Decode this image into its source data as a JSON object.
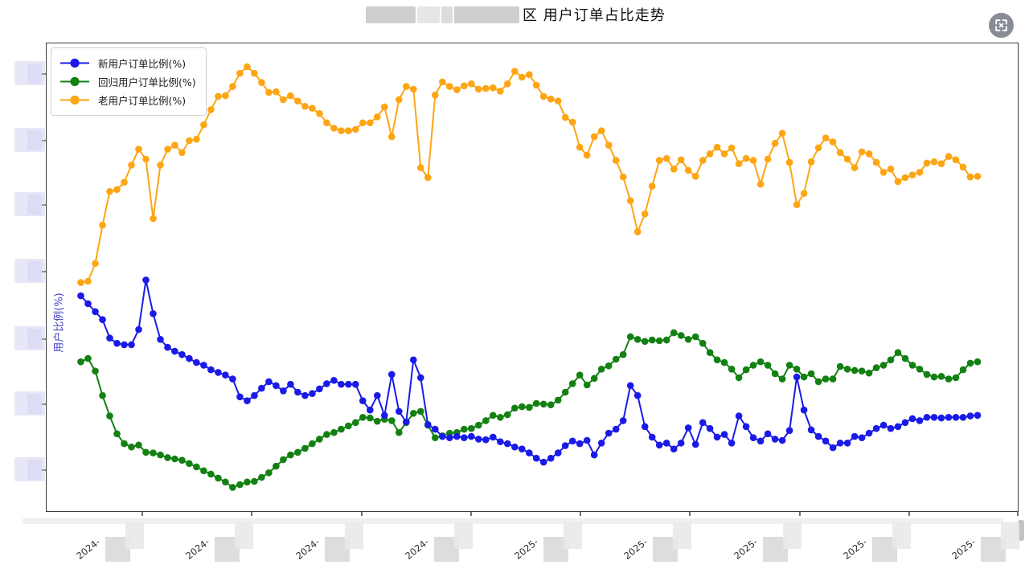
{
  "title": {
    "prefix_redacted": true,
    "visible_text": "区 用户订单占比走势"
  },
  "controls": {
    "fullscreen_button": {
      "icon": "fullscreen-expand-icon"
    }
  },
  "y_axis": {
    "label": "用户比例(%)",
    "label_color": "#4343c8",
    "tick_labels_redacted": true
  },
  "x_axis": {
    "tick_label_prefixes": [
      "2024-",
      "2024-",
      "2024-",
      "2024-",
      "2025-",
      "2025-",
      "2025-",
      "2025-",
      "2025-"
    ],
    "month_suffix_redacted": true
  },
  "chart_data": {
    "type": "line",
    "title": "区 用户订单占比走势",
    "xlabel": "",
    "ylabel": "用户比例(%)",
    "legend_position": "upper-left",
    "grid": false,
    "y_ticks_estimated": [
      10,
      20,
      30,
      40,
      50,
      60,
      70
    ],
    "y_tick_labels_redacted": true,
    "x_tick_labels_visible": [
      "2024-",
      "2024-",
      "2024-",
      "2024-",
      "2025-",
      "2025-",
      "2025-",
      "2025-",
      "2025-"
    ],
    "note": "daily percentage series; axis tick numbers blurred in source, values estimated",
    "series": [
      {
        "name": "新用户订单比例(%)",
        "color": "#1a1ae8",
        "values": [
          36.4,
          35.2,
          34.0,
          32.8,
          30.0,
          29.2,
          29.0,
          29.0,
          31.3,
          38.8,
          33.7,
          29.8,
          28.6,
          28.0,
          27.5,
          26.9,
          26.3,
          25.9,
          25.2,
          24.8,
          24.4,
          23.8,
          21.1,
          20.5,
          21.3,
          22.4,
          23.4,
          22.8,
          22.0,
          23.0,
          21.8,
          21.3,
          21.6,
          22.3,
          23.1,
          23.6,
          23.0,
          23.0,
          23.0,
          20.5,
          19.1,
          21.3,
          18.3,
          24.5,
          18.9,
          17.3,
          26.7,
          24.0,
          16.9,
          16.2,
          15.1,
          14.9,
          15.1,
          14.9,
          15.1,
          14.7,
          14.6,
          15.0,
          14.3,
          14.0,
          13.5,
          13.2,
          12.6,
          11.8,
          11.2,
          11.8,
          12.6,
          13.7,
          14.4,
          14.0,
          14.5,
          12.3,
          14.1,
          15.6,
          16.2,
          17.5,
          22.8,
          21.3,
          16.6,
          15.0,
          13.8,
          14.1,
          13.2,
          14.1,
          16.4,
          13.9,
          17.2,
          16.3,
          15.0,
          15.4,
          14.1,
          18.2,
          16.6,
          14.9,
          14.4,
          15.5,
          14.7,
          14.5,
          16.0,
          24.1,
          19.1,
          16.1,
          15.1,
          14.4,
          13.4,
          14.1,
          14.1,
          15.1,
          14.9,
          15.6,
          16.3,
          16.8,
          16.3,
          16.6,
          17.2,
          17.8,
          17.5,
          18.0,
          18.0,
          17.9,
          18.0,
          18.0,
          18.0,
          18.2,
          18.3
        ]
      },
      {
        "name": "回归用户订单比例(%)",
        "color": "#128112",
        "values": [
          26.4,
          26.9,
          25.0,
          21.3,
          18.2,
          15.5,
          14.0,
          13.5,
          13.8,
          12.7,
          12.6,
          12.3,
          11.9,
          11.7,
          11.5,
          11.0,
          10.5,
          9.9,
          9.4,
          8.8,
          8.2,
          7.4,
          7.8,
          8.2,
          8.3,
          8.9,
          9.6,
          10.6,
          11.6,
          12.3,
          12.7,
          13.3,
          14.0,
          14.7,
          15.4,
          15.7,
          16.2,
          16.7,
          17.2,
          18.0,
          17.9,
          17.4,
          17.7,
          17.5,
          15.7,
          17.2,
          18.6,
          18.9,
          16.8,
          14.9,
          15.2,
          15.6,
          15.7,
          16.2,
          16.3,
          16.8,
          17.5,
          18.3,
          18.0,
          18.4,
          19.4,
          19.6,
          19.5,
          20.1,
          20.0,
          19.9,
          20.6,
          21.8,
          23.1,
          24.4,
          22.9,
          23.9,
          25.3,
          25.8,
          26.8,
          27.5,
          30.2,
          29.8,
          29.5,
          29.7,
          29.6,
          29.7,
          30.8,
          30.4,
          29.8,
          30.2,
          29.2,
          27.8,
          26.7,
          26.3,
          25.3,
          24.0,
          25.2,
          25.9,
          26.4,
          25.9,
          24.6,
          23.8,
          25.9,
          25.3,
          24.1,
          24.6,
          23.4,
          23.8,
          23.8,
          25.7,
          25.3,
          25.1,
          25.0,
          24.7,
          25.5,
          25.9,
          26.7,
          27.8,
          26.9,
          25.9,
          25.3,
          24.5,
          24.1,
          24.2,
          23.8,
          24.0,
          25.2,
          26.2,
          26.4
        ]
      },
      {
        "name": "老用户订单比例(%)",
        "color": "#fda513",
        "values": [
          38.4,
          38.6,
          41.3,
          47.1,
          52.2,
          52.5,
          53.6,
          56.2,
          58.6,
          57.1,
          48.1,
          56.2,
          58.6,
          59.2,
          58.1,
          59.9,
          60.1,
          62.3,
          64.6,
          66.6,
          66.7,
          68.1,
          70.1,
          71.1,
          70.1,
          68.7,
          67.2,
          67.3,
          66.1,
          66.7,
          65.9,
          65.1,
          64.8,
          64.0,
          62.6,
          61.8,
          61.4,
          61.4,
          61.6,
          62.6,
          62.6,
          63.5,
          65.0,
          60.5,
          66.1,
          68.1,
          67.7,
          55.8,
          54.3,
          66.8,
          68.8,
          68.1,
          67.6,
          68.2,
          68.5,
          67.7,
          67.8,
          67.9,
          67.4,
          68.5,
          70.4,
          69.5,
          69.9,
          68.3,
          66.6,
          66.2,
          65.9,
          63.4,
          62.7,
          58.9,
          57.7,
          60.5,
          61.4,
          59.2,
          56.9,
          54.4,
          50.8,
          46.1,
          48.8,
          53.0,
          56.9,
          57.2,
          55.6,
          57.0,
          55.4,
          54.5,
          56.9,
          57.9,
          58.9,
          57.9,
          58.8,
          56.4,
          57.2,
          56.9,
          53.3,
          57.1,
          59.5,
          61.0,
          56.6,
          50.2,
          51.9,
          56.7,
          58.8,
          60.3,
          59.7,
          58.1,
          57.1,
          55.8,
          58.2,
          57.9,
          56.6,
          55.1,
          55.6,
          53.7,
          54.3,
          54.7,
          55.1,
          56.5,
          56.7,
          56.4,
          57.5,
          57.0,
          55.9,
          54.4,
          54.5
        ]
      }
    ]
  }
}
